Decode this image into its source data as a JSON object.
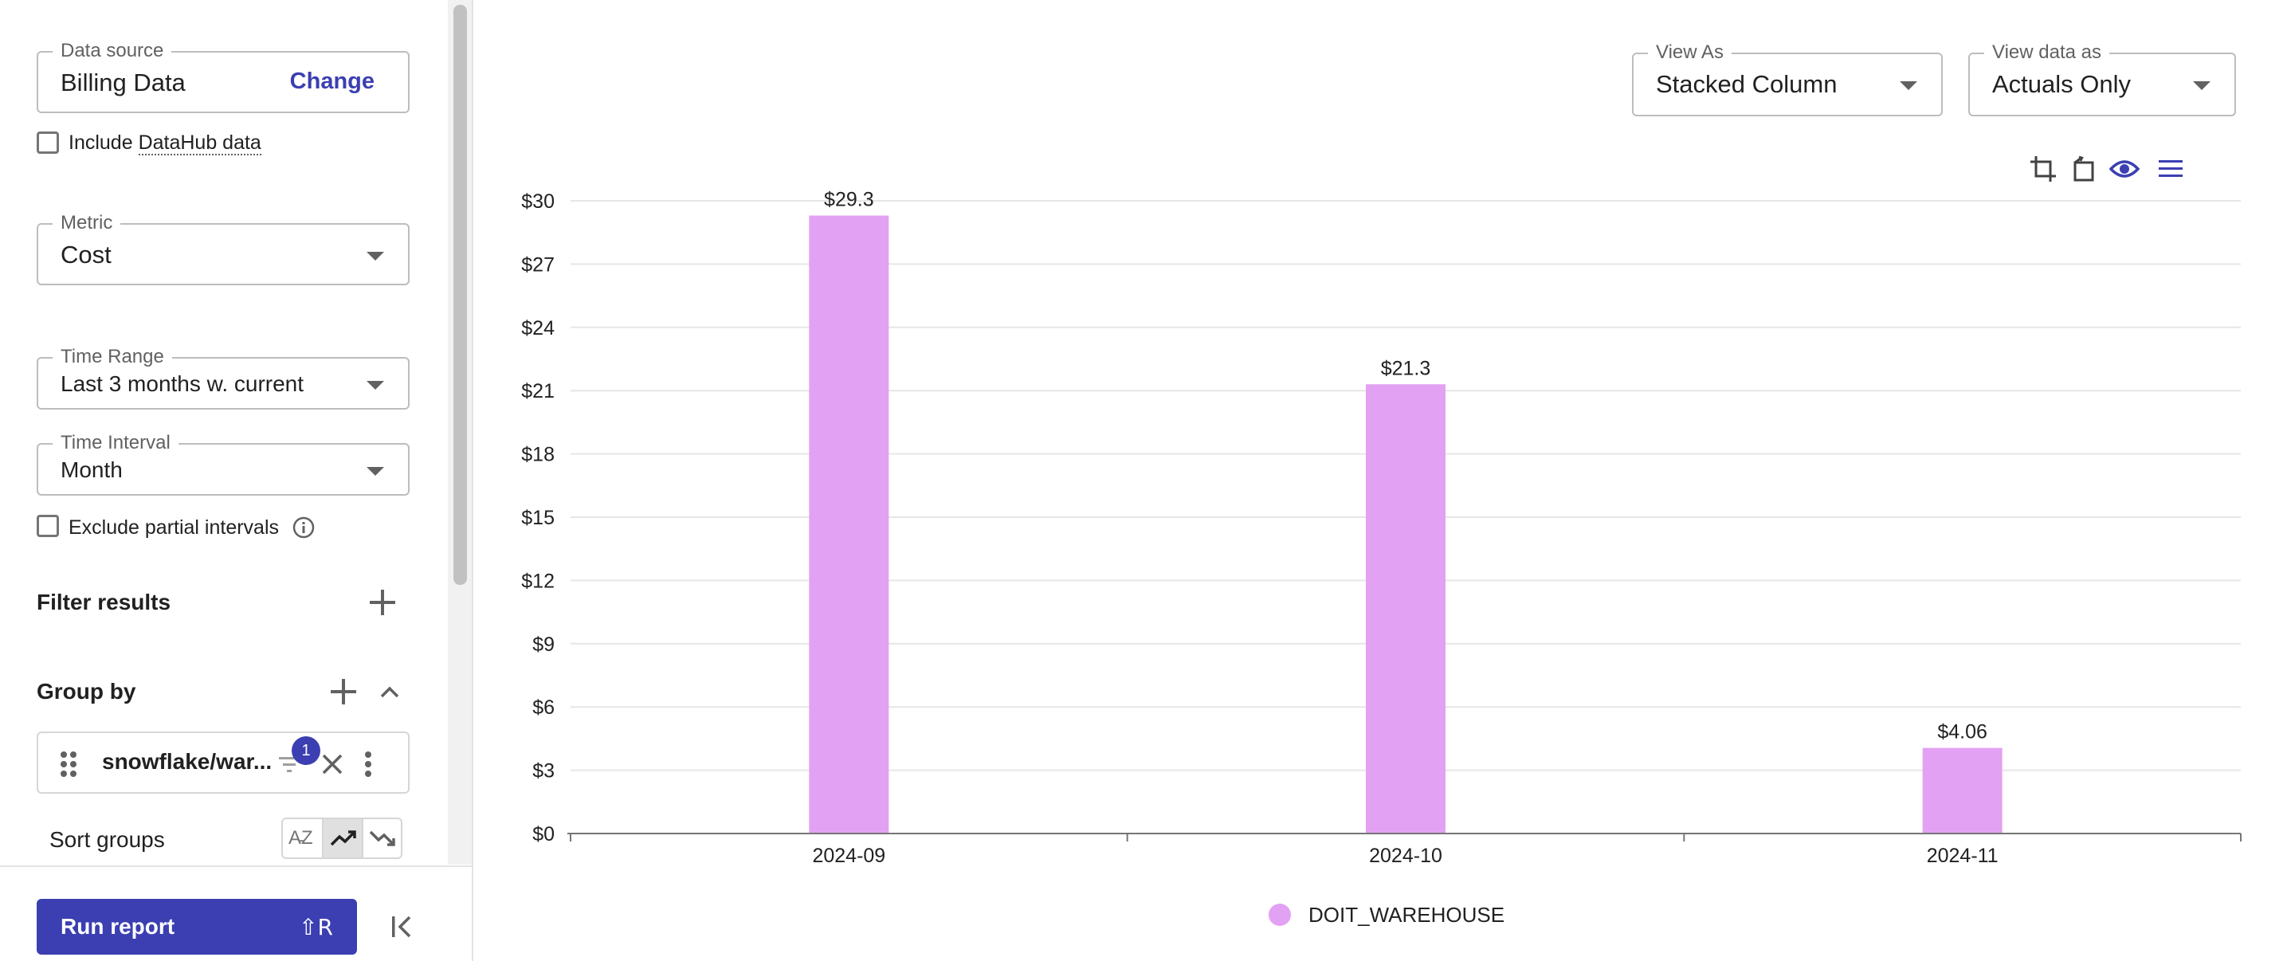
{
  "data_source": {
    "label": "Data source",
    "value": "Billing Data",
    "change_label": "Change"
  },
  "datahub": {
    "label_prefix": "Include ",
    "label_link": "DataHub data",
    "checked": false
  },
  "metric": {
    "label": "Metric",
    "value": "Cost"
  },
  "time_range": {
    "label": "Time Range",
    "value": "Last 3 months w. current"
  },
  "time_interval": {
    "label": "Time Interval",
    "value": "Month"
  },
  "exclude_partial": {
    "label": "Exclude partial intervals",
    "checked": false
  },
  "filter_results": {
    "title": "Filter results"
  },
  "group_by": {
    "title": "Group by",
    "chip": {
      "label": "snowflake/war...",
      "badge": "1"
    },
    "sort_label": "Sort groups"
  },
  "run_report": {
    "label": "Run report",
    "shortcut": "⇧R"
  },
  "view_as": {
    "label": "View As",
    "value": "Stacked Column"
  },
  "view_data_as": {
    "label": "View data as",
    "value": "Actuals Only"
  },
  "icons": {
    "crop": "crop-icon",
    "reset": "reset-zoom-icon",
    "eye": "eye-icon",
    "menu": "menu-icon",
    "drag": "drag-handle-icon",
    "filter": "filter-icon",
    "close": "close-icon",
    "more": "more-vert-icon",
    "sort_az": "sort-alpha-icon",
    "trend_up": "trending-up-icon",
    "trend_down": "trending-down-icon",
    "collapse": "collapse-panel-icon",
    "info": "info-icon"
  },
  "colors": {
    "accent": "#3b3fb1",
    "bar": "#e3a1f3"
  },
  "chart_data": {
    "type": "bar",
    "categories": [
      "2024-09",
      "2024-10",
      "2024-11"
    ],
    "series": [
      {
        "name": "DOIT_WAREHOUSE",
        "values": [
          29.3,
          21.3,
          4.06
        ]
      }
    ],
    "data_labels": [
      "$29.3",
      "$21.3",
      "$4.06"
    ],
    "y_ticks": [
      0,
      3,
      6,
      9,
      12,
      15,
      18,
      21,
      24,
      27,
      30
    ],
    "y_tick_labels": [
      "$0",
      "$3",
      "$6",
      "$9",
      "$12",
      "$15",
      "$18",
      "$21",
      "$24",
      "$27",
      "$30"
    ],
    "ylim": [
      0,
      30
    ],
    "grid": true,
    "legend_position": "bottom"
  }
}
